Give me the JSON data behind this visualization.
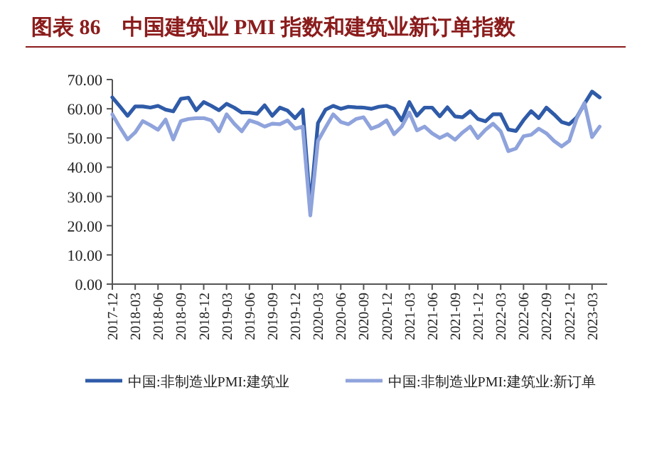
{
  "chart_data": {
    "type": "line",
    "title": "图表 86　中国建筑业 PMI 指数和建筑业新订单指数",
    "categories": [
      "2017-12",
      null,
      null,
      "2018-03",
      null,
      null,
      "2018-06",
      null,
      null,
      "2018-09",
      null,
      null,
      "2018-12",
      null,
      null,
      "2019-03",
      null,
      null,
      "2019-06",
      null,
      null,
      "2019-09",
      null,
      null,
      "2019-12",
      null,
      null,
      "2020-03",
      null,
      null,
      "2020-06",
      null,
      null,
      "2020-09",
      null,
      null,
      "2020-12",
      null,
      null,
      "2021-03",
      null,
      null,
      "2021-06",
      null,
      null,
      "2021-09",
      null,
      null,
      "2021-12",
      null,
      null,
      "2022-03",
      null,
      null,
      "2022-06",
      null,
      null,
      "2022-09",
      null,
      null,
      "2022-12",
      null,
      null,
      "2023-03",
      null
    ],
    "series": [
      {
        "name": "中国:非制造业PMI:建筑业",
        "color": "#2f5ba8",
        "values": [
          63.9,
          60.8,
          57.6,
          60.8,
          60.8,
          60.4,
          61.0,
          59.7,
          59.1,
          63.4,
          63.8,
          59.5,
          62.3,
          61.0,
          59.5,
          61.7,
          60.4,
          58.7,
          58.7,
          58.3,
          61.2,
          57.6,
          60.4,
          59.4,
          56.8,
          59.7,
          26.6,
          55.1,
          59.7,
          61.0,
          60.0,
          60.7,
          60.5,
          60.4,
          60.0,
          60.7,
          61.0,
          60.0,
          56.0,
          62.3,
          57.6,
          60.4,
          60.4,
          57.4,
          60.5,
          57.4,
          57.1,
          59.2,
          56.5,
          55.7,
          58.1,
          58.1,
          52.9,
          52.4,
          56.1,
          59.2,
          56.8,
          60.4,
          58.1,
          55.5,
          54.7,
          57.1,
          61.7,
          65.9,
          63.9
        ]
      },
      {
        "name": "中国:非制造业PMI:建筑业:新订单",
        "color": "#8fa3dc",
        "values": [
          58.1,
          53.6,
          49.5,
          51.9,
          55.8,
          54.4,
          52.8,
          56.3,
          49.5,
          55.8,
          56.5,
          56.8,
          56.8,
          56.0,
          52.3,
          58.1,
          54.9,
          52.3,
          56.0,
          55.2,
          53.9,
          54.9,
          54.7,
          56.0,
          53.2,
          53.9,
          23.5,
          49.0,
          53.6,
          58.1,
          55.5,
          54.7,
          56.5,
          57.1,
          53.2,
          54.2,
          56.0,
          51.3,
          53.9,
          58.7,
          52.6,
          53.9,
          51.6,
          50.0,
          51.3,
          49.4,
          51.9,
          53.9,
          50.0,
          52.8,
          54.9,
          52.3,
          45.5,
          46.4,
          50.6,
          51.1,
          53.2,
          51.6,
          49.0,
          47.1,
          49.0,
          56.8,
          62.0,
          50.3,
          53.9
        ]
      }
    ],
    "ylim": [
      0,
      70
    ],
    "yticks": [
      {
        "value": 0,
        "label": "0.00"
      },
      {
        "value": 10,
        "label": "10.00"
      },
      {
        "value": 20,
        "label": "20.00"
      },
      {
        "value": 30,
        "label": "30.00"
      },
      {
        "value": 40,
        "label": "40.00"
      },
      {
        "value": 50,
        "label": "50.00"
      },
      {
        "value": 60,
        "label": "60.00"
      },
      {
        "value": 70,
        "label": "70.00"
      }
    ],
    "legend": "bottom",
    "line_style": "solid",
    "marker": "none"
  }
}
